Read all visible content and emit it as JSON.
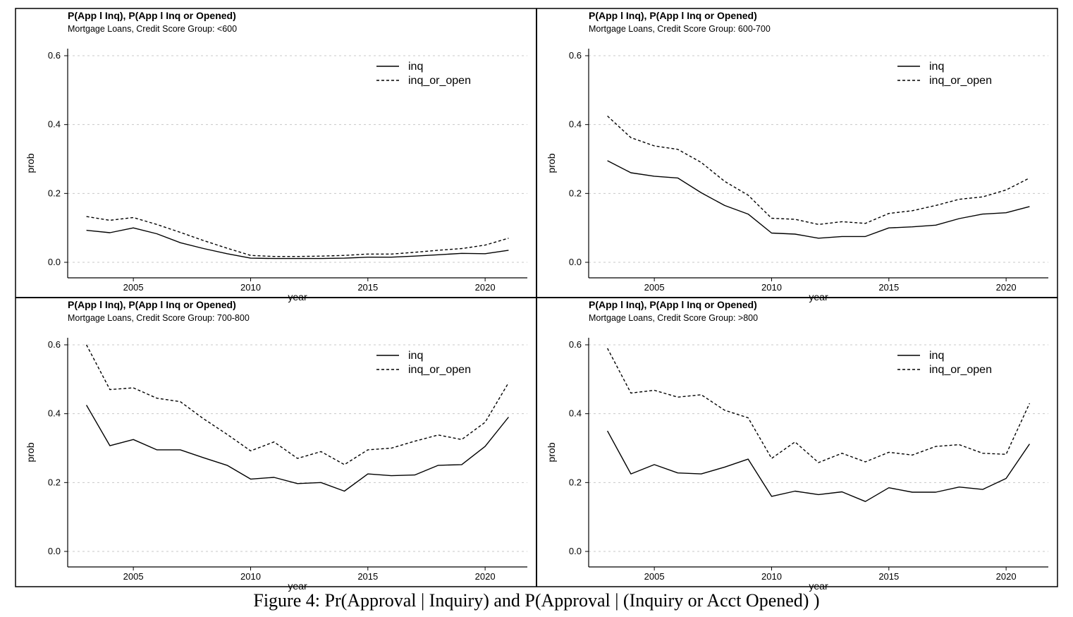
{
  "figure": {
    "caption": "Figure 4: Pr(Approval | Inquiry) and P(Approval | (Inquiry or Acct Opened) )"
  },
  "chart_data": [
    {
      "type": "line",
      "title": "P(App l Inq), P(App l Inq or Opened)",
      "subtitle": "Mortgage Loans, Credit Score Group: <600",
      "xlabel": "year",
      "ylabel": "prob",
      "xlim": [
        2002.2,
        2021.8
      ],
      "ylim": [
        0,
        0.6
      ],
      "xticks": [
        2005,
        2010,
        2015,
        2020
      ],
      "yticks": [
        0.0,
        0.2,
        0.4,
        0.6
      ],
      "grid": "horizontal-dashed",
      "legend_position": "top-right",
      "x": [
        2003,
        2004,
        2005,
        2006,
        2007,
        2008,
        2009,
        2010,
        2011,
        2012,
        2013,
        2014,
        2015,
        2016,
        2017,
        2018,
        2019,
        2020,
        2021
      ],
      "series": [
        {
          "name": "inq",
          "dash": "solid",
          "values": [
            0.093,
            0.086,
            0.1,
            0.083,
            0.057,
            0.04,
            0.025,
            0.012,
            0.011,
            0.011,
            0.011,
            0.012,
            0.015,
            0.015,
            0.018,
            0.022,
            0.026,
            0.025,
            0.035
          ]
        },
        {
          "name": "inq_or_open",
          "dash": "dashed",
          "values": [
            0.133,
            0.122,
            0.13,
            0.11,
            0.087,
            0.063,
            0.041,
            0.02,
            0.017,
            0.017,
            0.018,
            0.02,
            0.024,
            0.024,
            0.029,
            0.035,
            0.04,
            0.05,
            0.07
          ]
        }
      ]
    },
    {
      "type": "line",
      "title": "P(App l Inq), P(App l Inq or Opened)",
      "subtitle": "Mortgage Loans, Credit Score Group: 600-700",
      "xlabel": "year",
      "ylabel": "prob",
      "xlim": [
        2002.2,
        2021.8
      ],
      "ylim": [
        0,
        0.6
      ],
      "xticks": [
        2005,
        2010,
        2015,
        2020
      ],
      "yticks": [
        0.0,
        0.2,
        0.4,
        0.6
      ],
      "grid": "horizontal-dashed",
      "legend_position": "top-right",
      "x": [
        2003,
        2004,
        2005,
        2006,
        2007,
        2008,
        2009,
        2010,
        2011,
        2012,
        2013,
        2014,
        2015,
        2016,
        2017,
        2018,
        2019,
        2020,
        2021
      ],
      "series": [
        {
          "name": "inq",
          "dash": "solid",
          "values": [
            0.295,
            0.26,
            0.25,
            0.245,
            0.202,
            0.165,
            0.14,
            0.085,
            0.082,
            0.07,
            0.075,
            0.075,
            0.1,
            0.103,
            0.108,
            0.127,
            0.14,
            0.144,
            0.162
          ]
        },
        {
          "name": "inq_or_open",
          "dash": "dashed",
          "values": [
            0.425,
            0.362,
            0.338,
            0.328,
            0.29,
            0.235,
            0.195,
            0.128,
            0.125,
            0.11,
            0.118,
            0.113,
            0.142,
            0.15,
            0.165,
            0.183,
            0.19,
            0.21,
            0.245
          ]
        }
      ]
    },
    {
      "type": "line",
      "title": "P(App l Inq), P(App l Inq or Opened)",
      "subtitle": "Mortgage Loans, Credit Score Group: 700-800",
      "xlabel": "year",
      "ylabel": "prob",
      "xlim": [
        2002.2,
        2021.8
      ],
      "ylim": [
        0,
        0.6
      ],
      "xticks": [
        2005,
        2010,
        2015,
        2020
      ],
      "yticks": [
        0.0,
        0.2,
        0.4,
        0.6
      ],
      "grid": "horizontal-dashed",
      "legend_position": "top-right",
      "x": [
        2003,
        2004,
        2005,
        2006,
        2007,
        2008,
        2009,
        2010,
        2011,
        2012,
        2013,
        2014,
        2015,
        2016,
        2017,
        2018,
        2019,
        2020,
        2021
      ],
      "series": [
        {
          "name": "inq",
          "dash": "solid",
          "values": [
            0.425,
            0.307,
            0.325,
            0.295,
            0.295,
            0.272,
            0.25,
            0.21,
            0.215,
            0.197,
            0.2,
            0.175,
            0.225,
            0.22,
            0.222,
            0.25,
            0.252,
            0.305,
            0.39
          ]
        },
        {
          "name": "inq_or_open",
          "dash": "dashed",
          "values": [
            0.6,
            0.47,
            0.475,
            0.445,
            0.435,
            0.385,
            0.34,
            0.292,
            0.318,
            0.27,
            0.29,
            0.252,
            0.295,
            0.3,
            0.32,
            0.338,
            0.325,
            0.375,
            0.49
          ]
        }
      ]
    },
    {
      "type": "line",
      "title": "P(App l Inq), P(App l Inq or Opened)",
      "subtitle": "Mortgage Loans, Credit Score Group: >800",
      "xlabel": "year",
      "ylabel": "prob",
      "xlim": [
        2002.2,
        2021.8
      ],
      "ylim": [
        0,
        0.6
      ],
      "xticks": [
        2005,
        2010,
        2015,
        2020
      ],
      "yticks": [
        0.0,
        0.2,
        0.4,
        0.6
      ],
      "grid": "horizontal-dashed",
      "legend_position": "top-right",
      "x": [
        2003,
        2004,
        2005,
        2006,
        2007,
        2008,
        2009,
        2010,
        2011,
        2012,
        2013,
        2014,
        2015,
        2016,
        2017,
        2018,
        2019,
        2020,
        2021
      ],
      "series": [
        {
          "name": "inq",
          "dash": "solid",
          "values": [
            0.35,
            0.225,
            0.252,
            0.228,
            0.225,
            0.245,
            0.268,
            0.16,
            0.175,
            0.165,
            0.173,
            0.145,
            0.185,
            0.172,
            0.172,
            0.187,
            0.18,
            0.212,
            0.312
          ]
        },
        {
          "name": "inq_or_open",
          "dash": "dashed",
          "values": [
            0.59,
            0.46,
            0.468,
            0.448,
            0.455,
            0.41,
            0.388,
            0.27,
            0.318,
            0.258,
            0.285,
            0.26,
            0.288,
            0.28,
            0.305,
            0.31,
            0.285,
            0.282,
            0.43
          ]
        }
      ]
    }
  ]
}
